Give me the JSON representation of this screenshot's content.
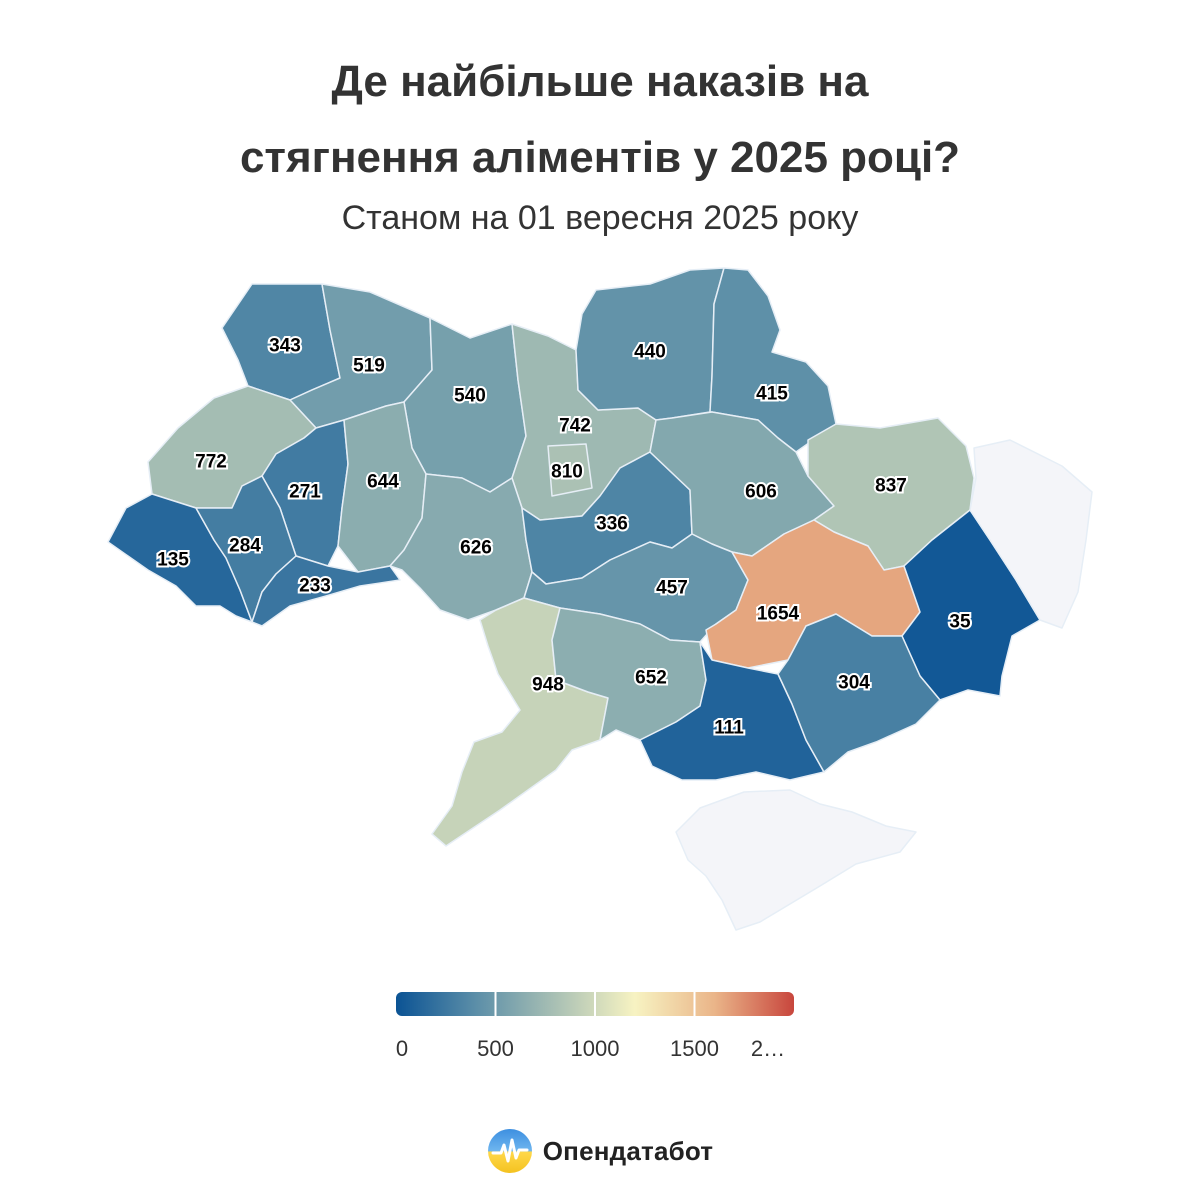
{
  "header": {
    "title_line1": "Де найбільше наказів на",
    "title_line2": "стягнення аліментів у 2025 році?",
    "subtitle": "Станом на 01 вересня 2025 року"
  },
  "chart_data": {
    "type": "choropleth",
    "no_data_color": "#f4f5f9",
    "colorscale": {
      "min": 0,
      "max": 2000,
      "stops": [
        "#0b5394",
        "#5b8ea8",
        "#a9c0b4",
        "#f7f3c2",
        "#eab589",
        "#c8463d"
      ],
      "ticks": [
        "0",
        "500",
        "1000",
        "1500",
        "2…"
      ]
    },
    "regions": [
      {
        "name": "volyn",
        "value": 343
      },
      {
        "name": "rivne",
        "value": 519
      },
      {
        "name": "zhytomyr",
        "value": 540
      },
      {
        "name": "kyiv-oblast",
        "value": 742
      },
      {
        "name": "kyiv-city",
        "value": 810
      },
      {
        "name": "chernihiv",
        "value": 440
      },
      {
        "name": "sumy",
        "value": 415
      },
      {
        "name": "lviv",
        "value": 772
      },
      {
        "name": "ternopil",
        "value": 271
      },
      {
        "name": "khmelnytskyi",
        "value": 644
      },
      {
        "name": "vinnytsia",
        "value": 626
      },
      {
        "name": "cherkasy",
        "value": 336
      },
      {
        "name": "poltava",
        "value": 606
      },
      {
        "name": "kharkiv",
        "value": 837
      },
      {
        "name": "zakarpattia",
        "value": 135
      },
      {
        "name": "ivano-frankivsk",
        "value": 284
      },
      {
        "name": "chernivtsi",
        "value": 233
      },
      {
        "name": "kirovohrad",
        "value": 457
      },
      {
        "name": "dnipropetrovsk",
        "value": 1654
      },
      {
        "name": "donetsk",
        "value": 35
      },
      {
        "name": "luhansk",
        "value": null
      },
      {
        "name": "odesa",
        "value": 948
      },
      {
        "name": "mykolaiv",
        "value": 652
      },
      {
        "name": "kherson",
        "value": 111
      },
      {
        "name": "zaporizhzhia",
        "value": 304
      },
      {
        "name": "crimea",
        "value": null
      }
    ]
  },
  "footer": {
    "brand": "Опендатабот"
  }
}
